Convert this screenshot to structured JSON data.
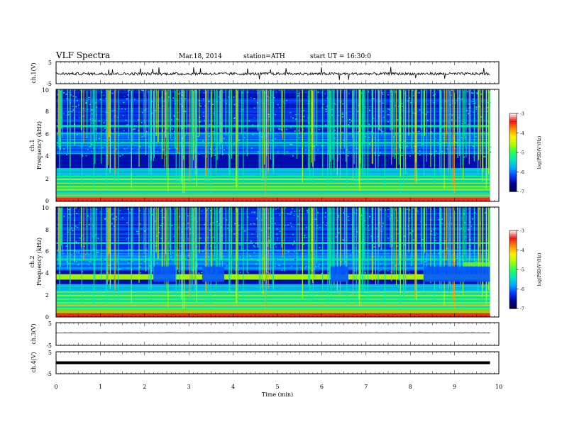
{
  "header": {
    "title": "VLF Spectra",
    "date": "Mar.18, 2014",
    "station": "station=ATH",
    "start": "start  UT  =   16:30:0"
  },
  "chart_data": [
    {
      "type": "line",
      "ylabel": "ch.1(V)",
      "ylim": [
        -5,
        5
      ],
      "yticks": [
        "5",
        "-5"
      ],
      "trace_level": 0,
      "trace_noise": "high"
    },
    {
      "type": "heatmap",
      "ylabel_top": "ch.1",
      "ylabel": "Frequency (kHz)",
      "ylim": [
        0,
        10
      ],
      "yticks": [
        "0",
        "2",
        "4",
        "6",
        "8",
        "10"
      ],
      "colorbar": {
        "label": "log(PSD(V²/Hz)",
        "range": [
          -7,
          -3
        ],
        "ticks": [
          "-3",
          "-4",
          "-5",
          "-6",
          "-7"
        ]
      },
      "colors": {
        "low": "#000080",
        "mid_low": "#0050ff",
        "mid": "#00ff80",
        "mid_high": "#ffff00",
        "high": "#ff0000"
      }
    },
    {
      "type": "heatmap",
      "ylabel_top": "ch.2",
      "ylabel": "Frequency (kHz)",
      "ylim": [
        0,
        10
      ],
      "yticks": [
        "0",
        "2",
        "4",
        "6",
        "8",
        "10"
      ],
      "colorbar": {
        "label": "log(PSD(V²/Hz)",
        "range": [
          -7,
          -3
        ],
        "ticks": [
          "-3",
          "-4",
          "-5",
          "-6",
          "-7"
        ]
      }
    },
    {
      "type": "line",
      "ylabel": "ch.3(V)",
      "ylim": [
        -5,
        5
      ],
      "yticks": [
        "5",
        "-5"
      ],
      "trace_level": 0,
      "trace_noise": "low"
    },
    {
      "type": "line",
      "ylabel": "ch.4(V)",
      "ylim": [
        -5,
        5
      ],
      "yticks": [
        "5",
        "-5"
      ],
      "trace_level": 0,
      "trace_noise": "thick"
    }
  ],
  "xaxis": {
    "label": "Time  (min)",
    "ticks": [
      "0",
      "1",
      "2",
      "3",
      "4",
      "5",
      "6",
      "7",
      "8",
      "9",
      "10"
    ],
    "xlim": [
      0,
      10
    ],
    "data_end": 9.8
  }
}
